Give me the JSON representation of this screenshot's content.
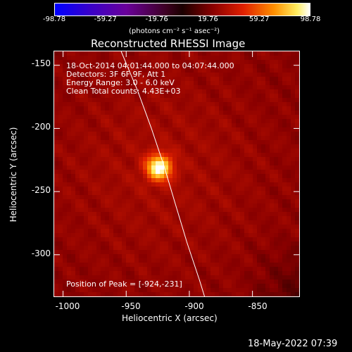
{
  "chart_data": {
    "type": "heatmap",
    "title": "Reconstructed RHESSI Image",
    "xlabel": "Heliocentric X (arcsec)",
    "ylabel": "Heliocentric Y (arcsec)",
    "xlim": [
      -1007,
      -813
    ],
    "ylim": [
      -333,
      -139
    ],
    "x_ticks": [
      "-1000",
      "-950",
      "-900",
      "-850"
    ],
    "x_tick_values": [
      -1000,
      -950,
      -900,
      -850
    ],
    "y_ticks": [
      "-150",
      "-200",
      "-250",
      "-300"
    ],
    "y_tick_values": [
      -150,
      -200,
      -250,
      -300
    ],
    "colorbar": {
      "ticks": [
        "-98.78",
        "-59.27",
        "-19.76",
        "19.76",
        "59.27",
        "98.78"
      ],
      "tick_values": [
        -98.78,
        -59.27,
        -19.76,
        19.76,
        59.27,
        98.78
      ],
      "units": "(photons cm⁻² s⁻¹ asec⁻²)",
      "range": [
        -98.78,
        98.78
      ]
    },
    "info_lines": [
      "18-Oct-2014 04:01:44.000 to 04:07:44.000",
      "Detectors: 3F 6F 9F, Att 1",
      "Energy Range: 3.0 - 6.0 keV",
      "Clean    Total counts: 4.43E+03"
    ],
    "peak_label": "Position of Peak = [-924,-231]",
    "peak": {
      "x": -924,
      "y": -231
    },
    "limb": [
      [
        -954,
        -139
      ],
      [
        -941,
        -170
      ],
      [
        -930,
        -200
      ],
      [
        -920,
        -230
      ],
      [
        -911,
        -260
      ],
      [
        -902,
        -290
      ],
      [
        -892,
        -320
      ],
      [
        -888,
        -333
      ]
    ]
  },
  "footer": {
    "timestamp": "18-May-2022 07:39"
  }
}
